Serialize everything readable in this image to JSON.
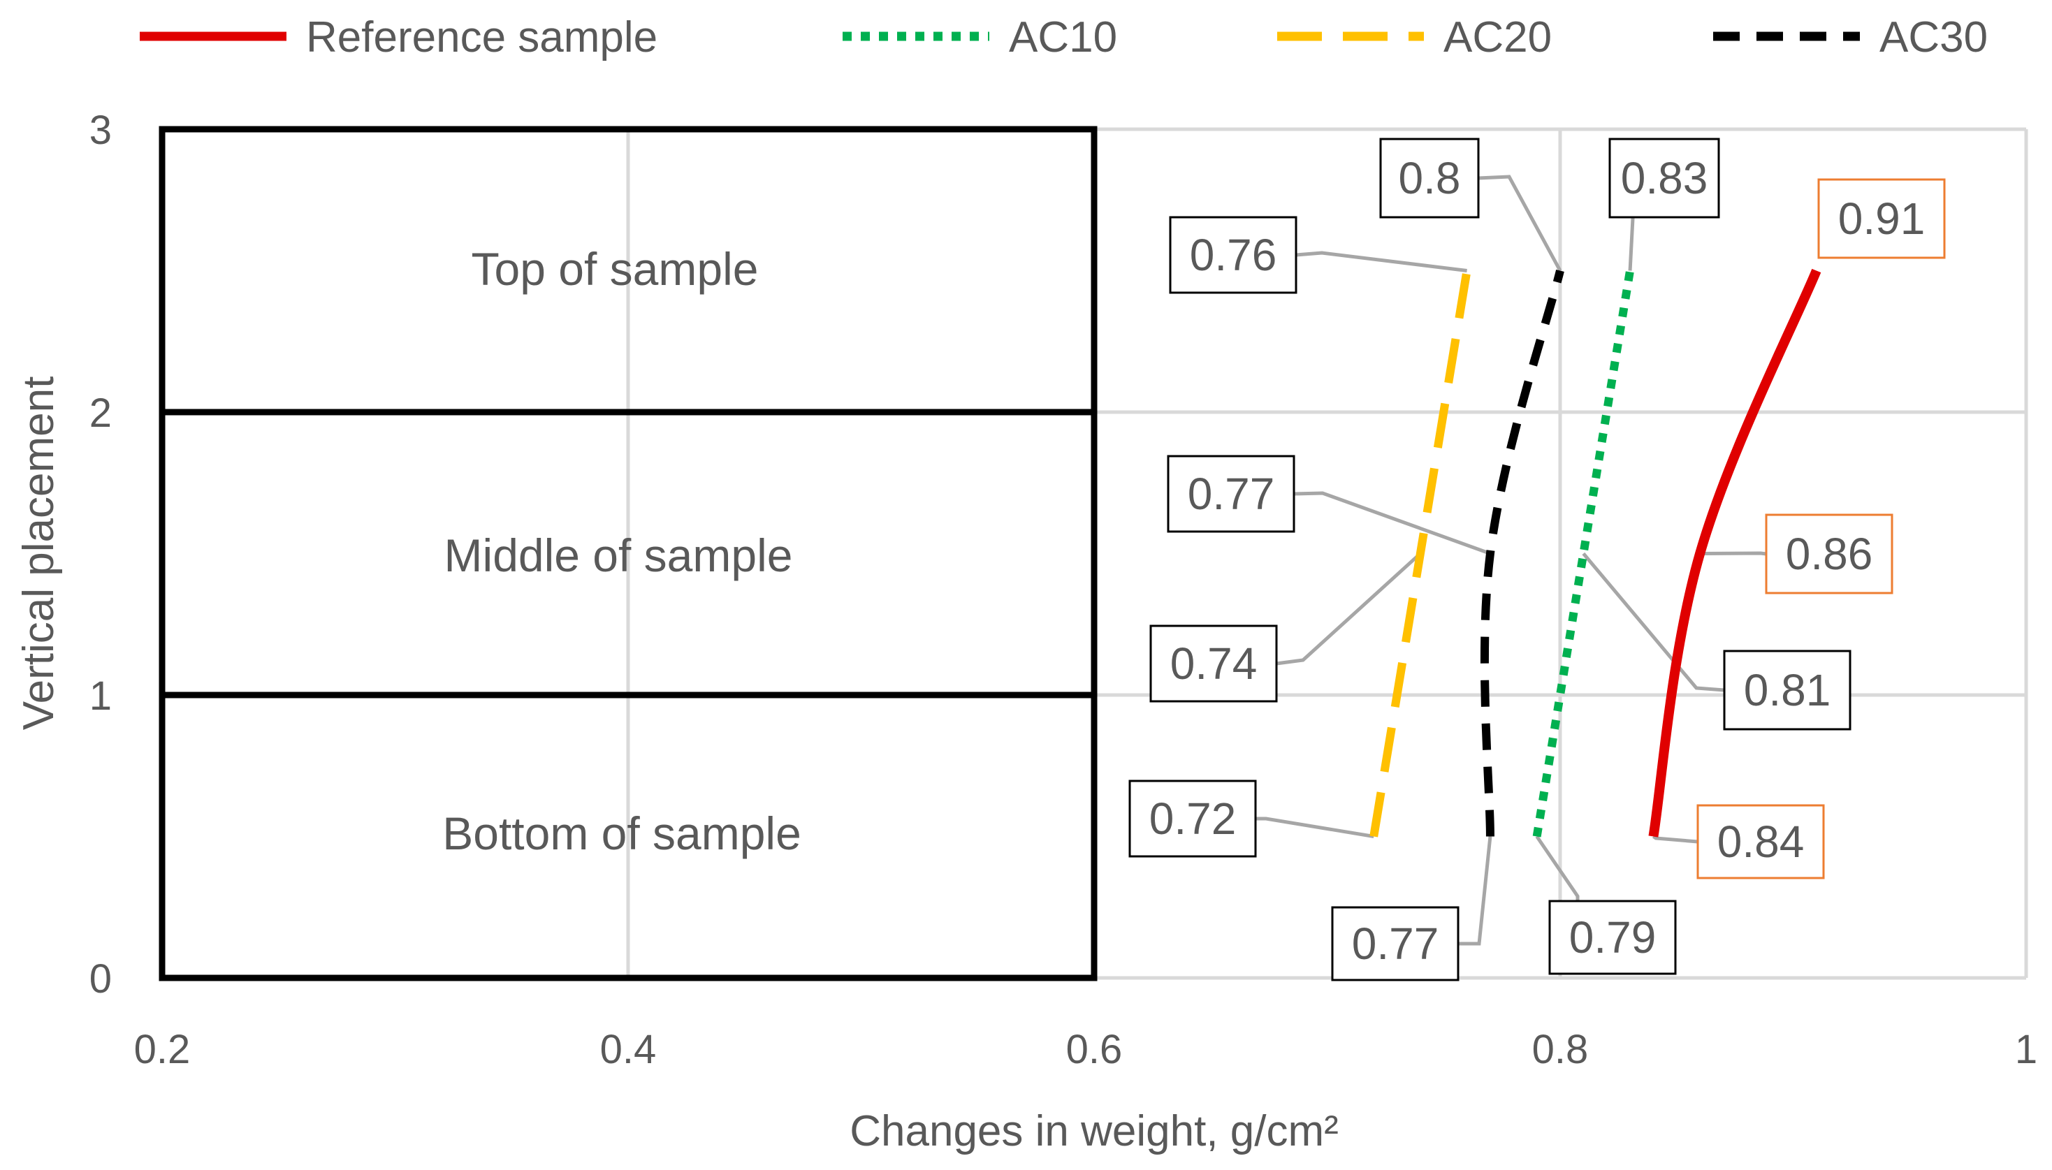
{
  "chart_data": {
    "type": "line",
    "title": "",
    "xlabel": "Changes in weight, g/cm²",
    "ylabel": "Vertical placement",
    "xlim": [
      0.2,
      1
    ],
    "ylim": [
      0,
      3
    ],
    "x_ticks": [
      "0.2",
      "0.4",
      "0.6",
      "0.8",
      "1"
    ],
    "y_ticks": [
      "0",
      "1",
      "2",
      "3"
    ],
    "grid": true,
    "legend_position": "top",
    "zones": [
      {
        "label": "Top of sample",
        "y_from": 2,
        "y_to": 3
      },
      {
        "label": "Middle of sample",
        "y_from": 1,
        "y_to": 2
      },
      {
        "label": "Bottom of sample",
        "y_from": 0,
        "y_to": 1
      }
    ],
    "series": [
      {
        "name": "Reference sample",
        "color": "#e00000",
        "style": "solid",
        "points": [
          {
            "x": 0.84,
            "y": 0.5
          },
          {
            "x": 0.86,
            "y": 1.5
          },
          {
            "x": 0.91,
            "y": 2.5
          }
        ],
        "labels": [
          "0.84",
          "0.86",
          "0.91"
        ],
        "label_border": "#ed7d31"
      },
      {
        "name": "AC10",
        "color": "#00b050",
        "style": "dotted",
        "points": [
          {
            "x": 0.79,
            "y": 0.5
          },
          {
            "x": 0.81,
            "y": 1.5
          },
          {
            "x": 0.83,
            "y": 2.5
          }
        ],
        "labels": [
          "0.79",
          "0.81",
          "0.83"
        ],
        "label_border": "#000000"
      },
      {
        "name": "AC20",
        "color": "#ffc000",
        "style": "long-dash",
        "points": [
          {
            "x": 0.72,
            "y": 0.5
          },
          {
            "x": 0.74,
            "y": 1.5
          },
          {
            "x": 0.76,
            "y": 2.5
          }
        ],
        "labels": [
          "0.72",
          "0.74",
          "0.76"
        ],
        "label_border": "#000000"
      },
      {
        "name": "AC30",
        "color": "#000000",
        "style": "dash",
        "points": [
          {
            "x": 0.77,
            "y": 0.5
          },
          {
            "x": 0.77,
            "y": 1.5
          },
          {
            "x": 0.8,
            "y": 2.5
          }
        ],
        "labels": [
          "0.77",
          "0.77",
          "0.8"
        ],
        "label_border": "#000000"
      }
    ]
  }
}
